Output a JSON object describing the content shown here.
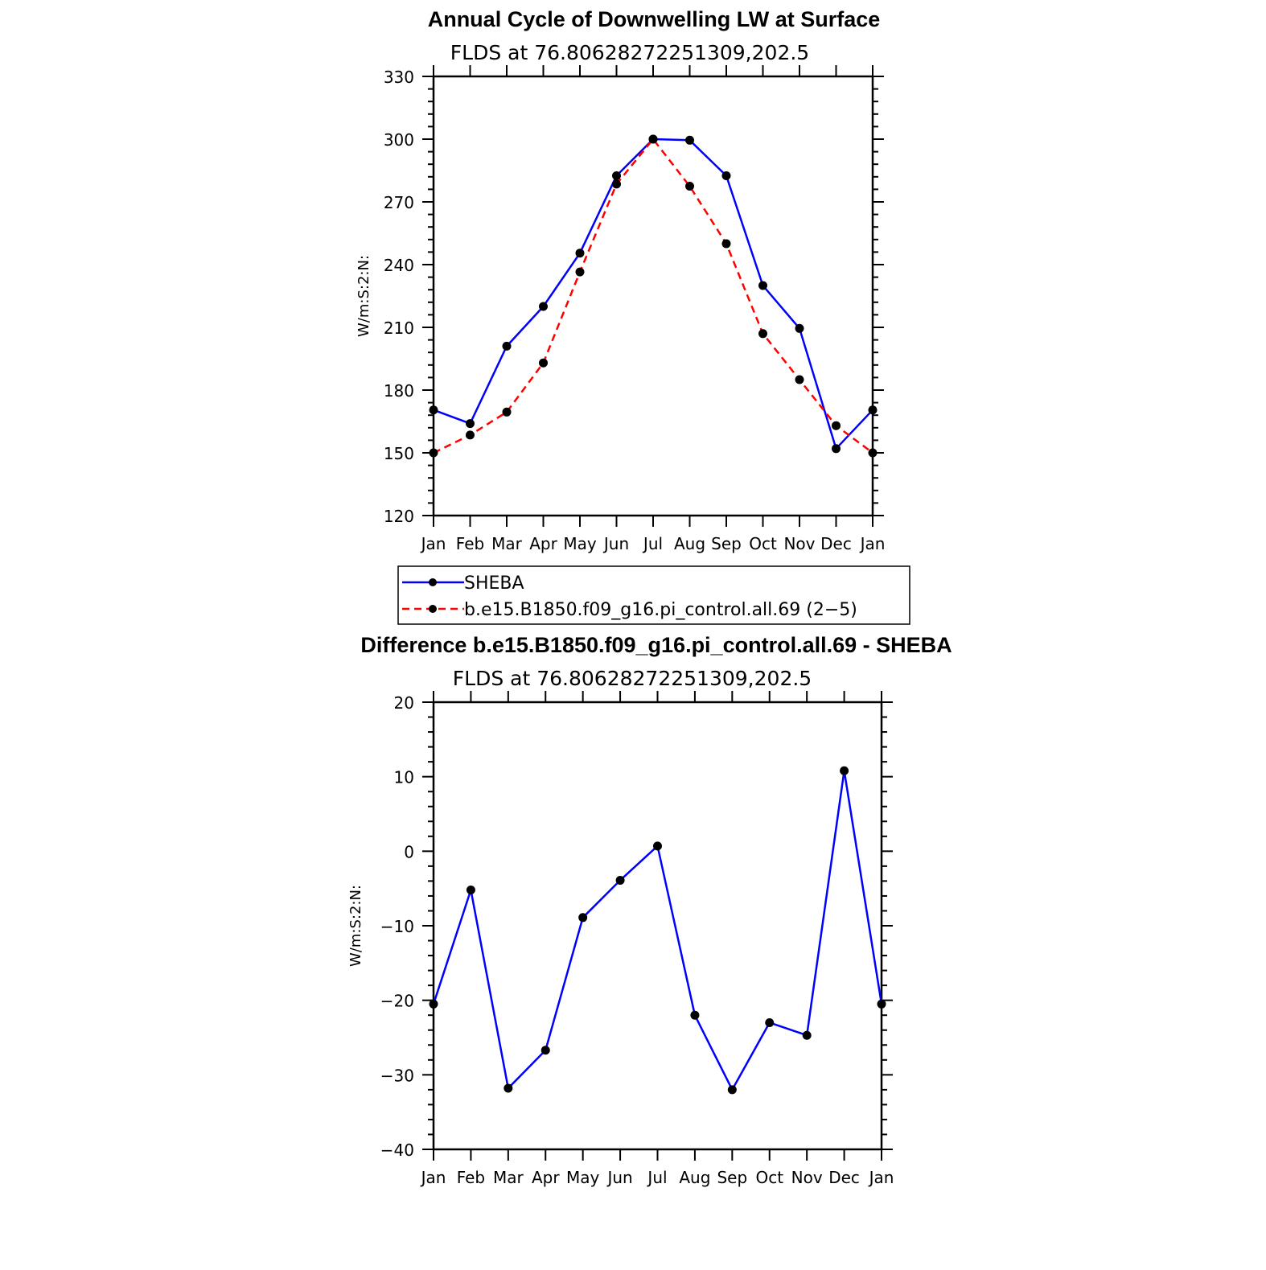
{
  "chart_data": [
    {
      "type": "line",
      "title": "Annual Cycle of Downwelling LW at Surface",
      "subtitle": "FLDS at 76.80628272251309,202.5",
      "xlabel": "",
      "ylabel": "W/m:S:2:N:",
      "categories": [
        "Jan",
        "Feb",
        "Mar",
        "Apr",
        "May",
        "Jun",
        "Jul",
        "Aug",
        "Sep",
        "Oct",
        "Nov",
        "Dec",
        "Jan"
      ],
      "ylim": [
        120,
        330
      ],
      "yticks": [
        "330",
        "300",
        "270",
        "240",
        "210",
        "180",
        "150",
        "120"
      ],
      "ytick_values": [
        330,
        300,
        270,
        240,
        210,
        180,
        150,
        120
      ],
      "legend_position": "bottom",
      "series": [
        {
          "name": "SHEBA",
          "color": "#0000ff",
          "dash": "solid",
          "values": [
            170.5,
            164,
            201,
            220,
            245.5,
            282.5,
            300,
            299.5,
            282.5,
            230,
            209.5,
            152,
            170.5
          ]
        },
        {
          "name": "b.e15.B1850.f09_g16.pi_control.all.69 (2−5)",
          "color": "#ff0000",
          "dash": "dashed",
          "values": [
            150,
            158.5,
            169.5,
            193,
            236.5,
            278.5,
            300,
            277.5,
            250,
            207,
            185,
            163,
            150
          ]
        }
      ]
    },
    {
      "type": "line",
      "title": "Difference b.e15.B1850.f09_g16.pi_control.all.69 - SHEBA",
      "subtitle": "FLDS at 76.80628272251309,202.5",
      "xlabel": "",
      "ylabel": "W/m:S:2:N:",
      "categories": [
        "Jan",
        "Feb",
        "Mar",
        "Apr",
        "May",
        "Jun",
        "Jul",
        "Aug",
        "Sep",
        "Oct",
        "Nov",
        "Dec",
        "Jan"
      ],
      "ylim": [
        -40,
        20
      ],
      "yticks": [
        "20",
        "10",
        "0",
        "−10",
        "−20",
        "−30",
        "−40"
      ],
      "ytick_values": [
        20,
        10,
        0,
        -10,
        -20,
        -30,
        -40
      ],
      "series": [
        {
          "color": "#0000ff",
          "dash": "solid",
          "values": [
            -20.5,
            -5.2,
            -31.8,
            -26.7,
            -8.9,
            -3.9,
            0.7,
            -22,
            -32,
            -23,
            -24.7,
            10.8,
            -20.5
          ]
        }
      ]
    }
  ]
}
